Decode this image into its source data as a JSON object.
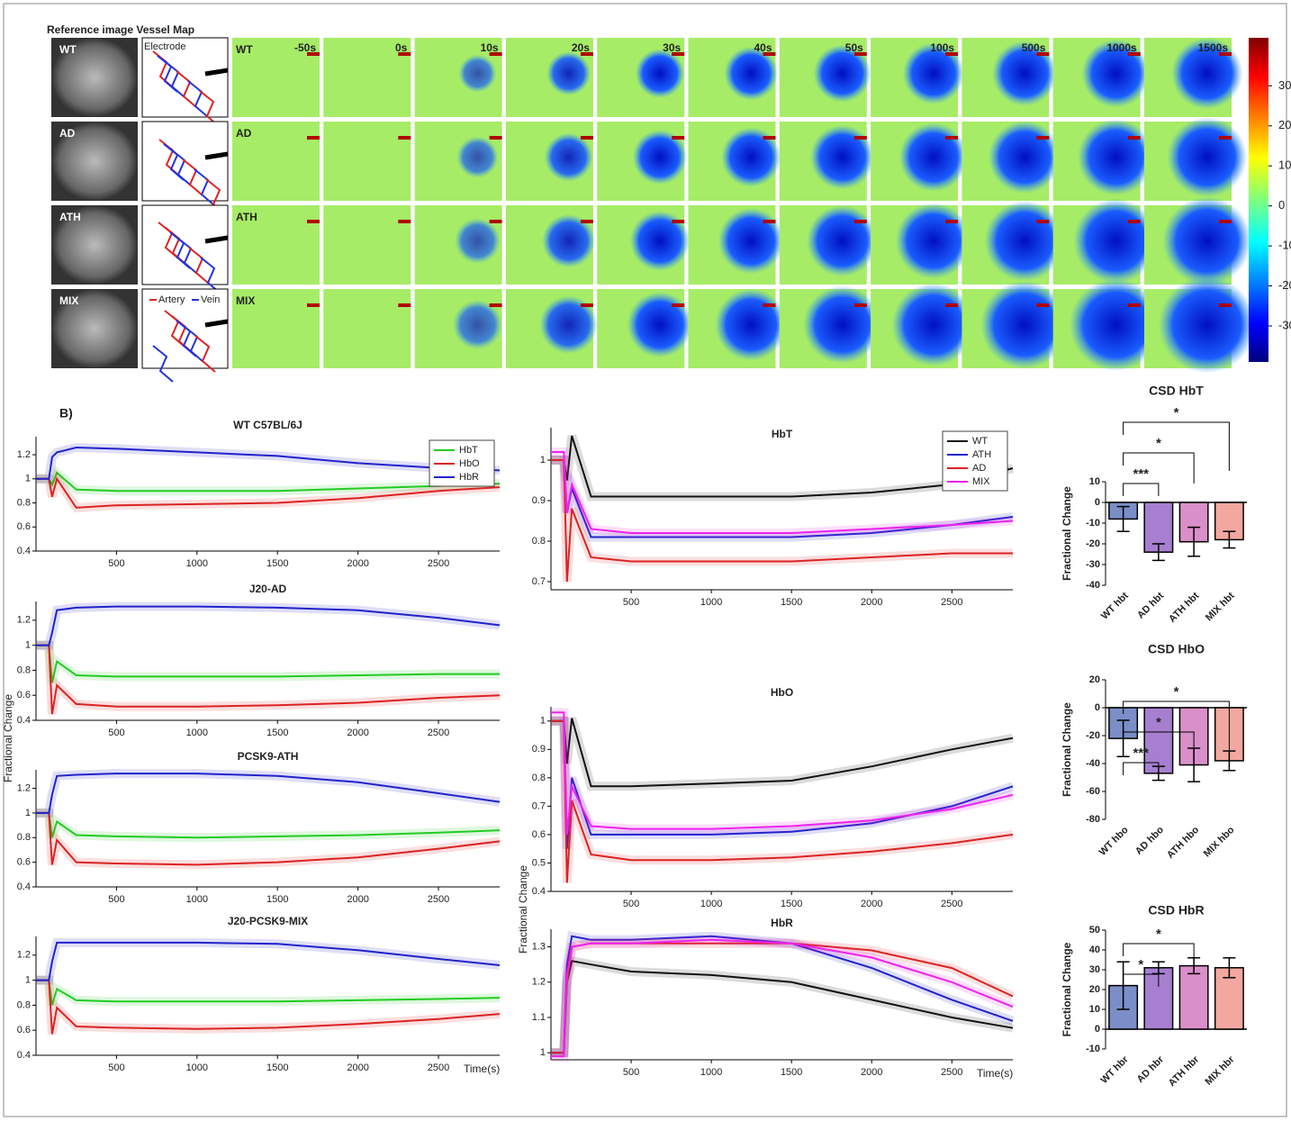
{
  "panel_a": {
    "title": "Reference image Vessel Map",
    "groups": [
      "WT",
      "AD",
      "ATH",
      "MIX"
    ],
    "times": [
      "-50s",
      "0s",
      "10s",
      "20s",
      "30s",
      "40s",
      "50s",
      "100s",
      "500s",
      "1000s",
      "1500s"
    ],
    "electrode_label": "Electrode",
    "artery_label": "Artery",
    "vein_label": "Vein",
    "colorbar": {
      "lim": [
        -39,
        42
      ],
      "ticks": [
        30,
        20,
        10,
        0,
        -10,
        -20,
        -30
      ]
    }
  },
  "panel_b_label": "B)",
  "chart_data": [
    {
      "type": "line",
      "title": "WT C57BL/6J",
      "legend": "upper right",
      "xlim": [
        0,
        2880
      ],
      "xticks": [
        500,
        1000,
        1500,
        2000,
        2500
      ],
      "ylim": [
        0.4,
        1.35
      ],
      "yticks": [
        0.4,
        0.6,
        0.8,
        1,
        1.2
      ],
      "x": [
        0,
        80,
        100,
        130,
        250,
        500,
        1000,
        1500,
        2000,
        2500,
        2880
      ],
      "series": [
        {
          "name": "HbT",
          "color": "#22cc22",
          "values": [
            1,
            1,
            0.95,
            1.05,
            0.91,
            0.9,
            0.9,
            0.9,
            0.92,
            0.94,
            0.96
          ]
        },
        {
          "name": "HbO",
          "color": "#dd2222",
          "values": [
            1,
            1,
            0.85,
            1.0,
            0.76,
            0.78,
            0.79,
            0.8,
            0.84,
            0.9,
            0.93
          ]
        },
        {
          "name": "HbR",
          "color": "#2222cc",
          "values": [
            1,
            1,
            1.18,
            1.22,
            1.26,
            1.25,
            1.22,
            1.19,
            1.13,
            1.09,
            1.07
          ]
        }
      ]
    },
    {
      "type": "line",
      "title": "J20-AD",
      "ylabel": "Fractional Change",
      "xlim": [
        0,
        2880
      ],
      "xticks": [
        500,
        1000,
        1500,
        2000,
        2500
      ],
      "ylim": [
        0.4,
        1.35
      ],
      "yticks": [
        0.4,
        0.6,
        0.8,
        1,
        1.2
      ],
      "x": [
        0,
        80,
        100,
        130,
        250,
        500,
        1000,
        1500,
        2000,
        2500,
        2880
      ],
      "series": [
        {
          "name": "HbT",
          "color": "#22cc22",
          "values": [
            1,
            1,
            0.7,
            0.87,
            0.76,
            0.75,
            0.75,
            0.75,
            0.76,
            0.77,
            0.77
          ]
        },
        {
          "name": "HbO",
          "color": "#dd2222",
          "values": [
            1,
            1,
            0.45,
            0.68,
            0.53,
            0.51,
            0.51,
            0.52,
            0.54,
            0.58,
            0.6
          ]
        },
        {
          "name": "HbR",
          "color": "#2222cc",
          "values": [
            1,
            1,
            1.1,
            1.28,
            1.3,
            1.31,
            1.31,
            1.3,
            1.28,
            1.22,
            1.16
          ]
        }
      ]
    },
    {
      "type": "line",
      "title": "PCSK9-ATH",
      "xlim": [
        0,
        2880
      ],
      "xticks": [
        500,
        1000,
        1500,
        2000,
        2500
      ],
      "ylim": [
        0.4,
        1.35
      ],
      "yticks": [
        0.4,
        0.6,
        0.8,
        1,
        1.2
      ],
      "x": [
        0,
        80,
        100,
        130,
        250,
        500,
        1000,
        1500,
        2000,
        2500,
        2880
      ],
      "series": [
        {
          "name": "HbT",
          "color": "#22cc22",
          "values": [
            1,
            1,
            0.8,
            0.93,
            0.82,
            0.81,
            0.8,
            0.81,
            0.82,
            0.84,
            0.86
          ]
        },
        {
          "name": "HbO",
          "color": "#dd2222",
          "values": [
            1,
            1,
            0.58,
            0.78,
            0.6,
            0.59,
            0.58,
            0.6,
            0.64,
            0.71,
            0.77
          ]
        },
        {
          "name": "HbR",
          "color": "#2222cc",
          "values": [
            1,
            1,
            1.15,
            1.3,
            1.31,
            1.32,
            1.32,
            1.3,
            1.25,
            1.16,
            1.09
          ]
        }
      ]
    },
    {
      "type": "line",
      "title": "J20-PCSK9-MIX",
      "xlabel": "Time(s)",
      "xlim": [
        0,
        2880
      ],
      "xticks": [
        500,
        1000,
        1500,
        2000,
        2500
      ],
      "ylim": [
        0.4,
        1.35
      ],
      "yticks": [
        0.4,
        0.6,
        0.8,
        1,
        1.2
      ],
      "x": [
        0,
        80,
        100,
        130,
        250,
        500,
        1000,
        1500,
        2000,
        2500,
        2880
      ],
      "series": [
        {
          "name": "HbT",
          "color": "#22cc22",
          "values": [
            1,
            1,
            0.8,
            0.93,
            0.84,
            0.83,
            0.83,
            0.83,
            0.84,
            0.85,
            0.86
          ]
        },
        {
          "name": "HbO",
          "color": "#dd2222",
          "values": [
            1,
            1,
            0.57,
            0.78,
            0.63,
            0.62,
            0.61,
            0.62,
            0.65,
            0.69,
            0.73
          ]
        },
        {
          "name": "HbR",
          "color": "#2222cc",
          "values": [
            1,
            1,
            1.15,
            1.3,
            1.3,
            1.3,
            1.3,
            1.29,
            1.24,
            1.17,
            1.12
          ]
        }
      ]
    },
    {
      "type": "line",
      "title": "HbT",
      "legend": "upper right",
      "xlim": [
        0,
        2880
      ],
      "xticks": [
        500,
        1000,
        1500,
        2000,
        2500
      ],
      "ylim": [
        0.68,
        1.08
      ],
      "yticks": [
        0.7,
        0.8,
        0.9,
        1
      ],
      "x": [
        0,
        80,
        100,
        130,
        250,
        500,
        1000,
        1500,
        2000,
        2500,
        2880
      ],
      "series": [
        {
          "name": "WT",
          "color": "#111111",
          "values": [
            1,
            1,
            0.95,
            1.06,
            0.91,
            0.91,
            0.91,
            0.91,
            0.92,
            0.94,
            0.98
          ]
        },
        {
          "name": "ATH",
          "color": "#2222cc",
          "values": [
            1,
            1,
            0.87,
            0.93,
            0.81,
            0.81,
            0.81,
            0.81,
            0.82,
            0.84,
            0.86
          ]
        },
        {
          "name": "AD",
          "color": "#dd2222",
          "values": [
            1,
            1,
            0.7,
            0.88,
            0.76,
            0.75,
            0.75,
            0.75,
            0.76,
            0.77,
            0.77
          ]
        },
        {
          "name": "MIX",
          "color": "#ee22ee",
          "values": [
            1.02,
            1.02,
            0.87,
            0.94,
            0.83,
            0.82,
            0.82,
            0.82,
            0.83,
            0.84,
            0.85
          ]
        }
      ]
    },
    {
      "type": "line",
      "title": "HbO",
      "ylabel": "Fractional Change",
      "xlim": [
        0,
        2880
      ],
      "xticks": [
        500,
        1000,
        1500,
        2000,
        2500
      ],
      "ylim": [
        0.4,
        1.05
      ],
      "yticks": [
        0.4,
        0.5,
        0.6,
        0.7,
        0.8,
        0.9,
        1
      ],
      "x": [
        0,
        80,
        100,
        130,
        250,
        500,
        1000,
        1500,
        2000,
        2500,
        2880
      ],
      "series": [
        {
          "name": "WT",
          "color": "#111111",
          "values": [
            1,
            1,
            0.85,
            1.01,
            0.77,
            0.77,
            0.78,
            0.79,
            0.84,
            0.9,
            0.94
          ]
        },
        {
          "name": "ATH",
          "color": "#2222cc",
          "values": [
            1,
            1,
            0.55,
            0.8,
            0.6,
            0.6,
            0.6,
            0.61,
            0.64,
            0.7,
            0.77
          ]
        },
        {
          "name": "AD",
          "color": "#dd2222",
          "values": [
            1,
            1,
            0.43,
            0.72,
            0.53,
            0.51,
            0.51,
            0.52,
            0.54,
            0.57,
            0.6
          ]
        },
        {
          "name": "MIX",
          "color": "#ee22ee",
          "values": [
            1.03,
            1.03,
            0.6,
            0.77,
            0.63,
            0.62,
            0.62,
            0.63,
            0.65,
            0.69,
            0.74
          ]
        }
      ]
    },
    {
      "type": "line",
      "title": "HbR",
      "xlabel": "Time(s)",
      "xlim": [
        0,
        2880
      ],
      "xticks": [
        500,
        1000,
        1500,
        2000,
        2500
      ],
      "ylim": [
        0.98,
        1.35
      ],
      "yticks": [
        1,
        1.1,
        1.2,
        1.3
      ],
      "x": [
        0,
        80,
        100,
        130,
        250,
        500,
        1000,
        1500,
        2000,
        2500,
        2880
      ],
      "series": [
        {
          "name": "WT",
          "color": "#111111",
          "values": [
            1,
            1,
            1.2,
            1.26,
            1.25,
            1.23,
            1.22,
            1.2,
            1.15,
            1.1,
            1.07
          ]
        },
        {
          "name": "ATH",
          "color": "#2222cc",
          "values": [
            1,
            1,
            1.25,
            1.33,
            1.32,
            1.32,
            1.33,
            1.31,
            1.24,
            1.15,
            1.09
          ]
        },
        {
          "name": "AD",
          "color": "#dd2222",
          "values": [
            1,
            1,
            1.2,
            1.3,
            1.31,
            1.31,
            1.31,
            1.31,
            1.29,
            1.24,
            1.16
          ]
        },
        {
          "name": "MIX",
          "color": "#ee22ee",
          "values": [
            0.99,
            0.99,
            1.22,
            1.3,
            1.31,
            1.31,
            1.32,
            1.31,
            1.27,
            1.2,
            1.13
          ]
        }
      ]
    },
    {
      "type": "bar",
      "title": "CSD HbT",
      "ylabel": "Fractional Change",
      "categories": [
        "WT hbt",
        "AD hbt",
        "ATH hbt",
        "MIX hbt"
      ],
      "values": [
        -8,
        -24,
        -19,
        -18
      ],
      "errors": [
        6,
        4,
        7,
        4
      ],
      "colors": [
        "#7b8ec8",
        "#a77fd0",
        "#d98fc8",
        "#f2a8a0"
      ],
      "ylim": [
        -40,
        10
      ],
      "yticks": [
        -40,
        -30,
        -20,
        -10,
        0,
        10
      ],
      "significance": [
        {
          "pair": [
            0,
            1
          ],
          "label": "***"
        },
        {
          "pair": [
            0,
            2
          ],
          "label": "*"
        },
        {
          "pair": [
            0,
            3
          ],
          "label": "*"
        }
      ]
    },
    {
      "type": "bar",
      "title": "CSD HbO",
      "ylabel": "Fractional Change",
      "categories": [
        "WT hbo",
        "AD hbo",
        "ATH hbo",
        "MIX hbo"
      ],
      "values": [
        -22,
        -47,
        -41,
        -38
      ],
      "errors": [
        13,
        5,
        12,
        7
      ],
      "colors": [
        "#7b8ec8",
        "#a77fd0",
        "#d98fc8",
        "#f2a8a0"
      ],
      "ylim": [
        -80,
        20
      ],
      "yticks": [
        -80,
        -60,
        -40,
        -20,
        0,
        20
      ],
      "significance": [
        {
          "pair": [
            0,
            1
          ],
          "label": "***"
        },
        {
          "pair": [
            0,
            2
          ],
          "label": "*"
        },
        {
          "pair": [
            0,
            3
          ],
          "label": "*"
        }
      ]
    },
    {
      "type": "bar",
      "title": "CSD HbR",
      "ylabel": "Fractional Change",
      "categories": [
        "WT hbr",
        "AD hbr",
        "ATH hbr",
        "MIX hbr"
      ],
      "values": [
        22,
        31,
        32,
        31
      ],
      "errors": [
        12,
        3,
        4,
        5
      ],
      "colors": [
        "#7b8ec8",
        "#a77fd0",
        "#d98fc8",
        "#f2a8a0"
      ],
      "ylim": [
        -10,
        50
      ],
      "yticks": [
        -10,
        0,
        10,
        20,
        30,
        40,
        50
      ],
      "significance": [
        {
          "pair": [
            0,
            1
          ],
          "label": "*"
        },
        {
          "pair": [
            0,
            2
          ],
          "label": "*"
        }
      ]
    }
  ]
}
